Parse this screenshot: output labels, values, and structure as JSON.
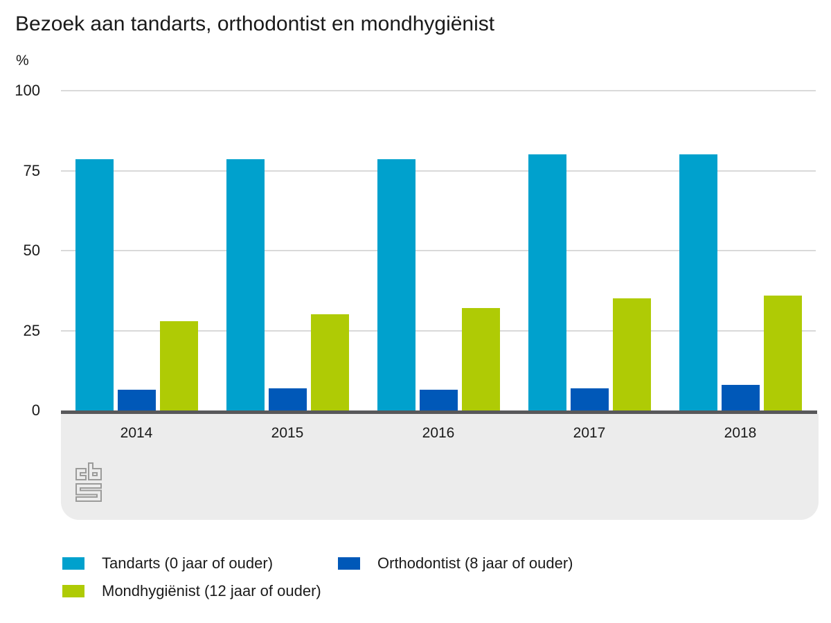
{
  "title": "Bezoek aan tandarts, orthodontist en mondhygiënist",
  "chart_data": {
    "type": "bar",
    "title": "Bezoek aan tandarts, orthodontist en mondhygiënist",
    "unit": "%",
    "ylabel": "%",
    "xlabel": "",
    "categories": [
      "2014",
      "2015",
      "2016",
      "2017",
      "2018"
    ],
    "series": [
      {
        "name": "Tandarts (0 jaar of ouder)",
        "color": "#00a1cd",
        "values": [
          78.5,
          78.5,
          78.5,
          80,
          80
        ]
      },
      {
        "name": "Orthodontist (8 jaar of ouder)",
        "color": "#0058b8",
        "values": [
          6.5,
          7,
          6.5,
          7,
          8
        ]
      },
      {
        "name": "Mondhygiënist (12 jaar of ouder)",
        "color": "#afcb05",
        "values": [
          28,
          30,
          32,
          35,
          36
        ]
      }
    ],
    "ylim": [
      0,
      100
    ],
    "yticks": [
      0,
      25,
      50,
      75,
      100
    ],
    "grid": true,
    "legend_position": "bottom"
  },
  "colors": {
    "axis_line": "#58585a",
    "gridline": "#d9d9d9",
    "category_band": "#ececec",
    "logo_gray": "#9b9b9a",
    "text": "#1a1a1a"
  },
  "footer": {
    "logo_name": "cbs-logo"
  }
}
